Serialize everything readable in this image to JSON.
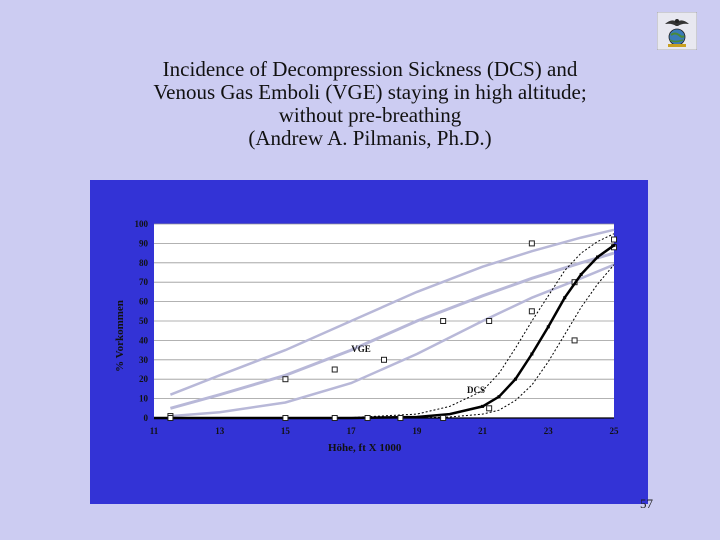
{
  "slide": {
    "title_lines": [
      "Incidence of Decompression Sickness (DCS) and",
      "Venous Gas Emboli (VGE) staying in high altitude;",
      "without pre-breathing",
      "(Andrew A. Pilmanis, Ph.D.)"
    ],
    "page_number": "57",
    "logo_icon": "eagle-globe-icon"
  },
  "chart_data": {
    "type": "line",
    "title": "",
    "xlabel": "Höhe, ft X 1000",
    "ylabel": "% Vorkommen",
    "xlim": [
      11,
      25
    ],
    "ylim": [
      0,
      100
    ],
    "x_ticks": [
      11,
      13,
      15,
      17,
      19,
      21,
      23,
      25
    ],
    "y_ticks": [
      0,
      10,
      20,
      30,
      40,
      50,
      60,
      70,
      80,
      90,
      100
    ],
    "grid": "horizontal",
    "colors": {
      "plot_bg": "#ffffff",
      "panel_bg": "#3333d6",
      "vge": "#b8b8d8",
      "dcs": "#000000"
    },
    "annotations": [
      {
        "text": "VGE",
        "x": 17.3,
        "y": 34
      },
      {
        "text": "DCS",
        "x": 20.8,
        "y": 13
      }
    ],
    "series": [
      {
        "label": "VGE",
        "style": "light-band",
        "x": [
          11.5,
          13,
          15,
          17,
          19,
          21,
          22.5,
          24,
          25
        ],
        "y": [
          5,
          12,
          22,
          35,
          50,
          63,
          72,
          80,
          85
        ],
        "lower": [
          1,
          3,
          8,
          18,
          33,
          50,
          62,
          72,
          79
        ],
        "upper": [
          12,
          22,
          35,
          50,
          65,
          78,
          86,
          93,
          97
        ],
        "points_x": [
          11.5,
          15,
          16.5,
          18,
          19.8,
          21.2,
          22.5,
          23.8,
          25
        ],
        "points_y": [
          1,
          20,
          25,
          30,
          50,
          50,
          90,
          70,
          88
        ]
      },
      {
        "label": "DCS",
        "style": "black-dotted-band",
        "x": [
          11,
          13,
          15,
          17,
          19,
          20,
          21,
          21.5,
          22,
          22.5,
          23,
          23.5,
          24,
          24.5,
          25
        ],
        "y": [
          0,
          0,
          0,
          0,
          0.5,
          2,
          6,
          11,
          20,
          33,
          47,
          62,
          74,
          83,
          89
        ],
        "lower": [
          0,
          0,
          0,
          0,
          0,
          0.5,
          2,
          4,
          9,
          17,
          29,
          43,
          57,
          69,
          79
        ],
        "upper": [
          0,
          0,
          0,
          0.2,
          2,
          6,
          14,
          23,
          36,
          50,
          63,
          76,
          85,
          91,
          95
        ],
        "points_x": [
          11.5,
          15,
          16.5,
          17.5,
          18.5,
          19.8,
          21.2,
          22.5,
          23.8,
          25
        ],
        "points_y": [
          0,
          0,
          0,
          0,
          0,
          0,
          5,
          55,
          40,
          92
        ]
      }
    ]
  }
}
